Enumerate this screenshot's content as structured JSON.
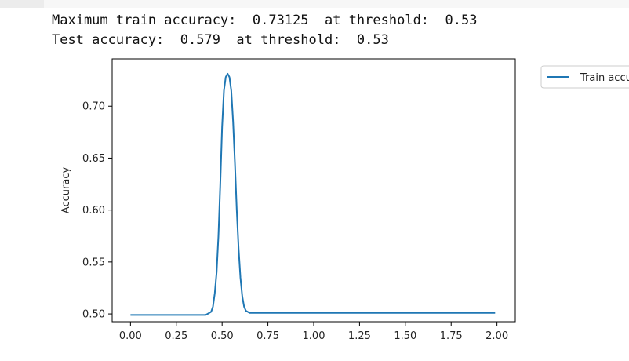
{
  "output": {
    "line1": "Maximum train accuracy:  0.73125  at threshold:  0.53",
    "line2": "Test accuracy:  0.579  at threshold:  0.53"
  },
  "colors": {
    "series": "#1f77b4",
    "axis": "#000000",
    "legend_border": "#cccccc"
  },
  "chart_data": {
    "type": "line",
    "title": "",
    "xlabel": "",
    "ylabel": "Accuracy",
    "xlim": [
      -0.1,
      2.1
    ],
    "ylim": [
      0.4925,
      0.7455
    ],
    "xticks": [
      0.0,
      0.25,
      0.5,
      0.75,
      1.0,
      1.25,
      1.5,
      1.75,
      2.0
    ],
    "xtick_labels": [
      "0.00",
      "0.25",
      "0.50",
      "0.75",
      "1.00",
      "1.25",
      "1.50",
      "1.75",
      "2.00"
    ],
    "yticks": [
      0.5,
      0.55,
      0.6,
      0.65,
      0.7
    ],
    "ytick_labels": [
      "0.50",
      "0.55",
      "0.60",
      "0.65",
      "0.70"
    ],
    "grid": false,
    "legend_position": "outside-top-right",
    "series": [
      {
        "name": "Train accuracy",
        "x": [
          0.0,
          0.1,
          0.2,
          0.3,
          0.4,
          0.41,
          0.42,
          0.43,
          0.44,
          0.45,
          0.46,
          0.47,
          0.48,
          0.49,
          0.5,
          0.51,
          0.52,
          0.53,
          0.54,
          0.55,
          0.56,
          0.57,
          0.58,
          0.59,
          0.6,
          0.61,
          0.62,
          0.63,
          0.64,
          0.65,
          0.7,
          0.8,
          1.0,
          1.25,
          1.5,
          1.75,
          1.99
        ],
        "y": [
          0.499,
          0.499,
          0.499,
          0.499,
          0.499,
          0.499,
          0.5,
          0.501,
          0.502,
          0.507,
          0.52,
          0.54,
          0.575,
          0.625,
          0.68,
          0.715,
          0.728,
          0.73125,
          0.728,
          0.715,
          0.685,
          0.645,
          0.6,
          0.563,
          0.535,
          0.517,
          0.507,
          0.503,
          0.502,
          0.501,
          0.501,
          0.501,
          0.501,
          0.501,
          0.501,
          0.501,
          0.501
        ]
      }
    ]
  }
}
